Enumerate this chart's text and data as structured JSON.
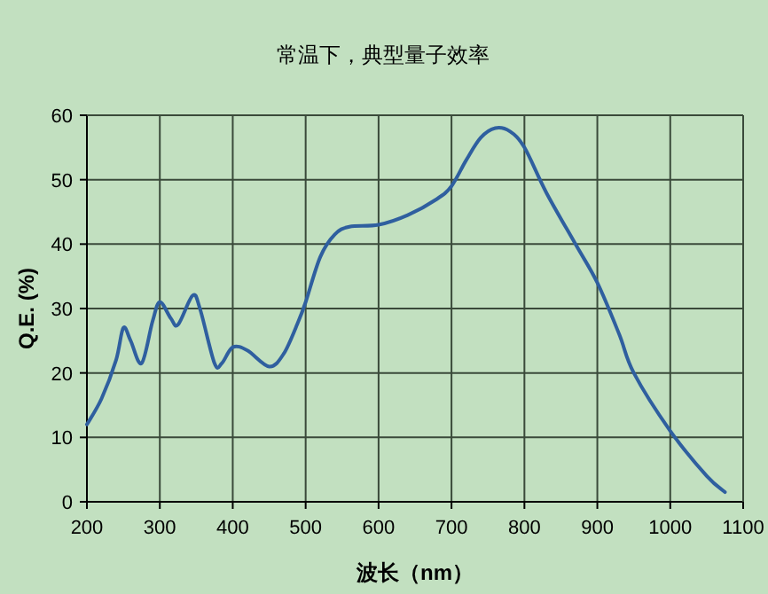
{
  "chart_data": {
    "type": "line",
    "title": "常温下，典型量子效率",
    "xlabel": "波长（nm）",
    "ylabel": "Q.E. (%)",
    "x": [
      200,
      220,
      240,
      250,
      260,
      275,
      290,
      300,
      315,
      325,
      345,
      355,
      375,
      385,
      400,
      420,
      450,
      470,
      490,
      500,
      520,
      540,
      560,
      600,
      640,
      680,
      700,
      720,
      740,
      760,
      780,
      800,
      830,
      870,
      900,
      930,
      950,
      1000,
      1050,
      1075
    ],
    "series": [
      {
        "color": "#2f5f9f",
        "values": [
          12,
          16,
          22,
          27,
          25,
          21.5,
          28,
          31,
          28.5,
          27.5,
          32,
          30,
          21.5,
          21.5,
          24,
          23.5,
          21,
          23,
          28,
          31,
          38,
          41.5,
          42.7,
          43,
          44.5,
          47,
          49,
          53,
          56.5,
          58,
          57.5,
          55,
          48,
          40,
          34,
          26,
          20,
          11,
          4,
          1.5
        ]
      }
    ],
    "xlim": [
      200,
      1100
    ],
    "xticks": [
      200,
      300,
      400,
      500,
      600,
      700,
      800,
      900,
      1000,
      1100
    ],
    "ylim": [
      0,
      60
    ],
    "yticks": [
      0,
      10,
      20,
      30,
      40,
      50,
      60
    ],
    "grid": true,
    "marker": "none",
    "line_style": "solid"
  }
}
